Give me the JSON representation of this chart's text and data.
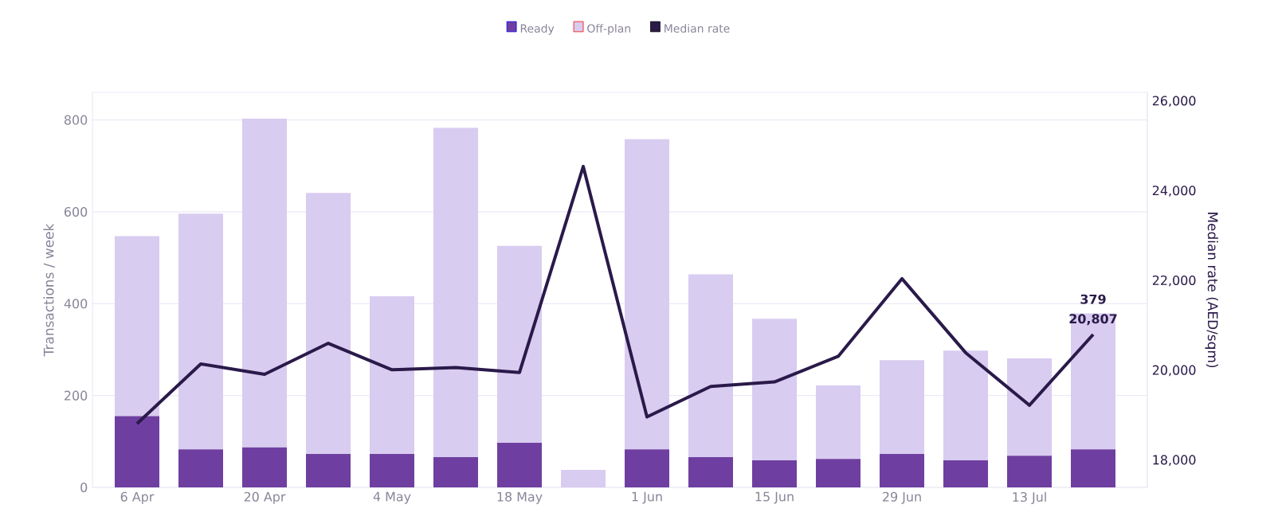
{
  "chart_data": {
    "type": "bar",
    "stacked": true,
    "categories": [
      "6 Apr",
      null,
      "20 Apr",
      null,
      "4 May",
      null,
      "18 May",
      null,
      "1 Jun",
      null,
      "15 Jun",
      null,
      "29 Jun",
      null,
      "13 Jul",
      null
    ],
    "series": [
      {
        "name": "Ready",
        "color": "#6e3fa0",
        "values": [
          155,
          83,
          87,
          73,
          73,
          66,
          97,
          0,
          83,
          66,
          59,
          62,
          73,
          59,
          69,
          83
        ]
      },
      {
        "name": "Off-plan",
        "color": "#d8ccf0",
        "values": [
          392,
          513,
          716,
          568,
          343,
          717,
          429,
          38,
          675,
          398,
          308,
          160,
          204,
          239,
          212,
          296
        ]
      },
      {
        "name": "Median rate",
        "type": "line",
        "axis": "y2",
        "color": "#2a1a4a",
        "values": [
          18820,
          20150,
          19920,
          20610,
          20020,
          20070,
          19960,
          24550,
          18970,
          19650,
          19750,
          20320,
          22050,
          20400,
          19230,
          20807
        ],
        "value_labels": [
          null,
          null,
          null,
          null,
          null,
          null,
          null,
          null,
          null,
          null,
          null,
          null,
          null,
          null,
          null,
          "20,807"
        ]
      }
    ],
    "totals": [
      null,
      null,
      null,
      null,
      null,
      null,
      null,
      null,
      null,
      null,
      null,
      null,
      null,
      null,
      null,
      "379"
    ],
    "ylabel": "Transactions / week",
    "y2label": "Median rate (AED/sqm)",
    "ylim": [
      0,
      860
    ],
    "yticks": [
      0,
      200,
      400,
      600,
      800
    ],
    "y2lim": [
      17400,
      26200
    ],
    "y2ticks": [
      {
        "value": 18000,
        "label": "18,000"
      },
      {
        "value": 20000,
        "label": "20,000"
      },
      {
        "value": 22000,
        "label": "22,000"
      },
      {
        "value": 24000,
        "label": "24,000"
      },
      {
        "value": 26000,
        "label": "26,000"
      }
    ],
    "grid": "y",
    "legend": "top"
  }
}
